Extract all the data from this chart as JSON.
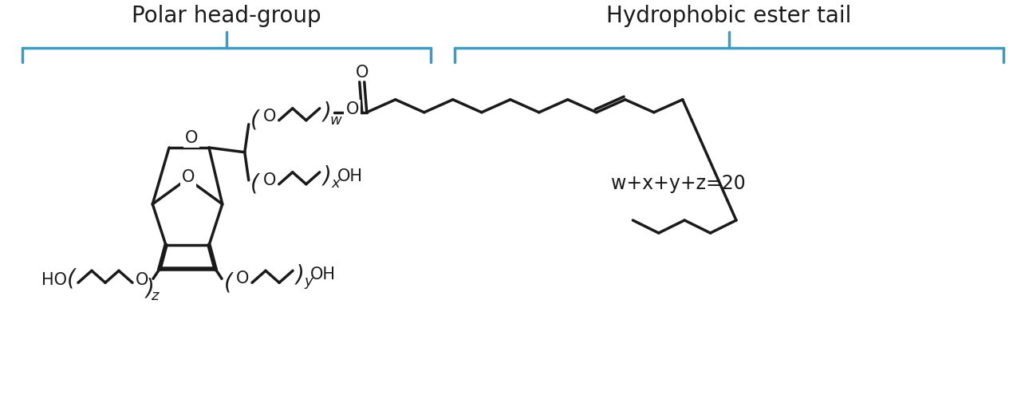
{
  "bg_color": "#ffffff",
  "line_color": "#1a1a1a",
  "bracket_color": "#3b9dbf",
  "label_polar": "Polar head-group",
  "label_hydro": "Hydrophobic ester tail",
  "equation": "w+x+y+z=20",
  "lw": 2.5,
  "bracket_lw": 2.5,
  "title_fontsize": 20,
  "chem_fontsize": 15,
  "sub_fontsize": 13
}
